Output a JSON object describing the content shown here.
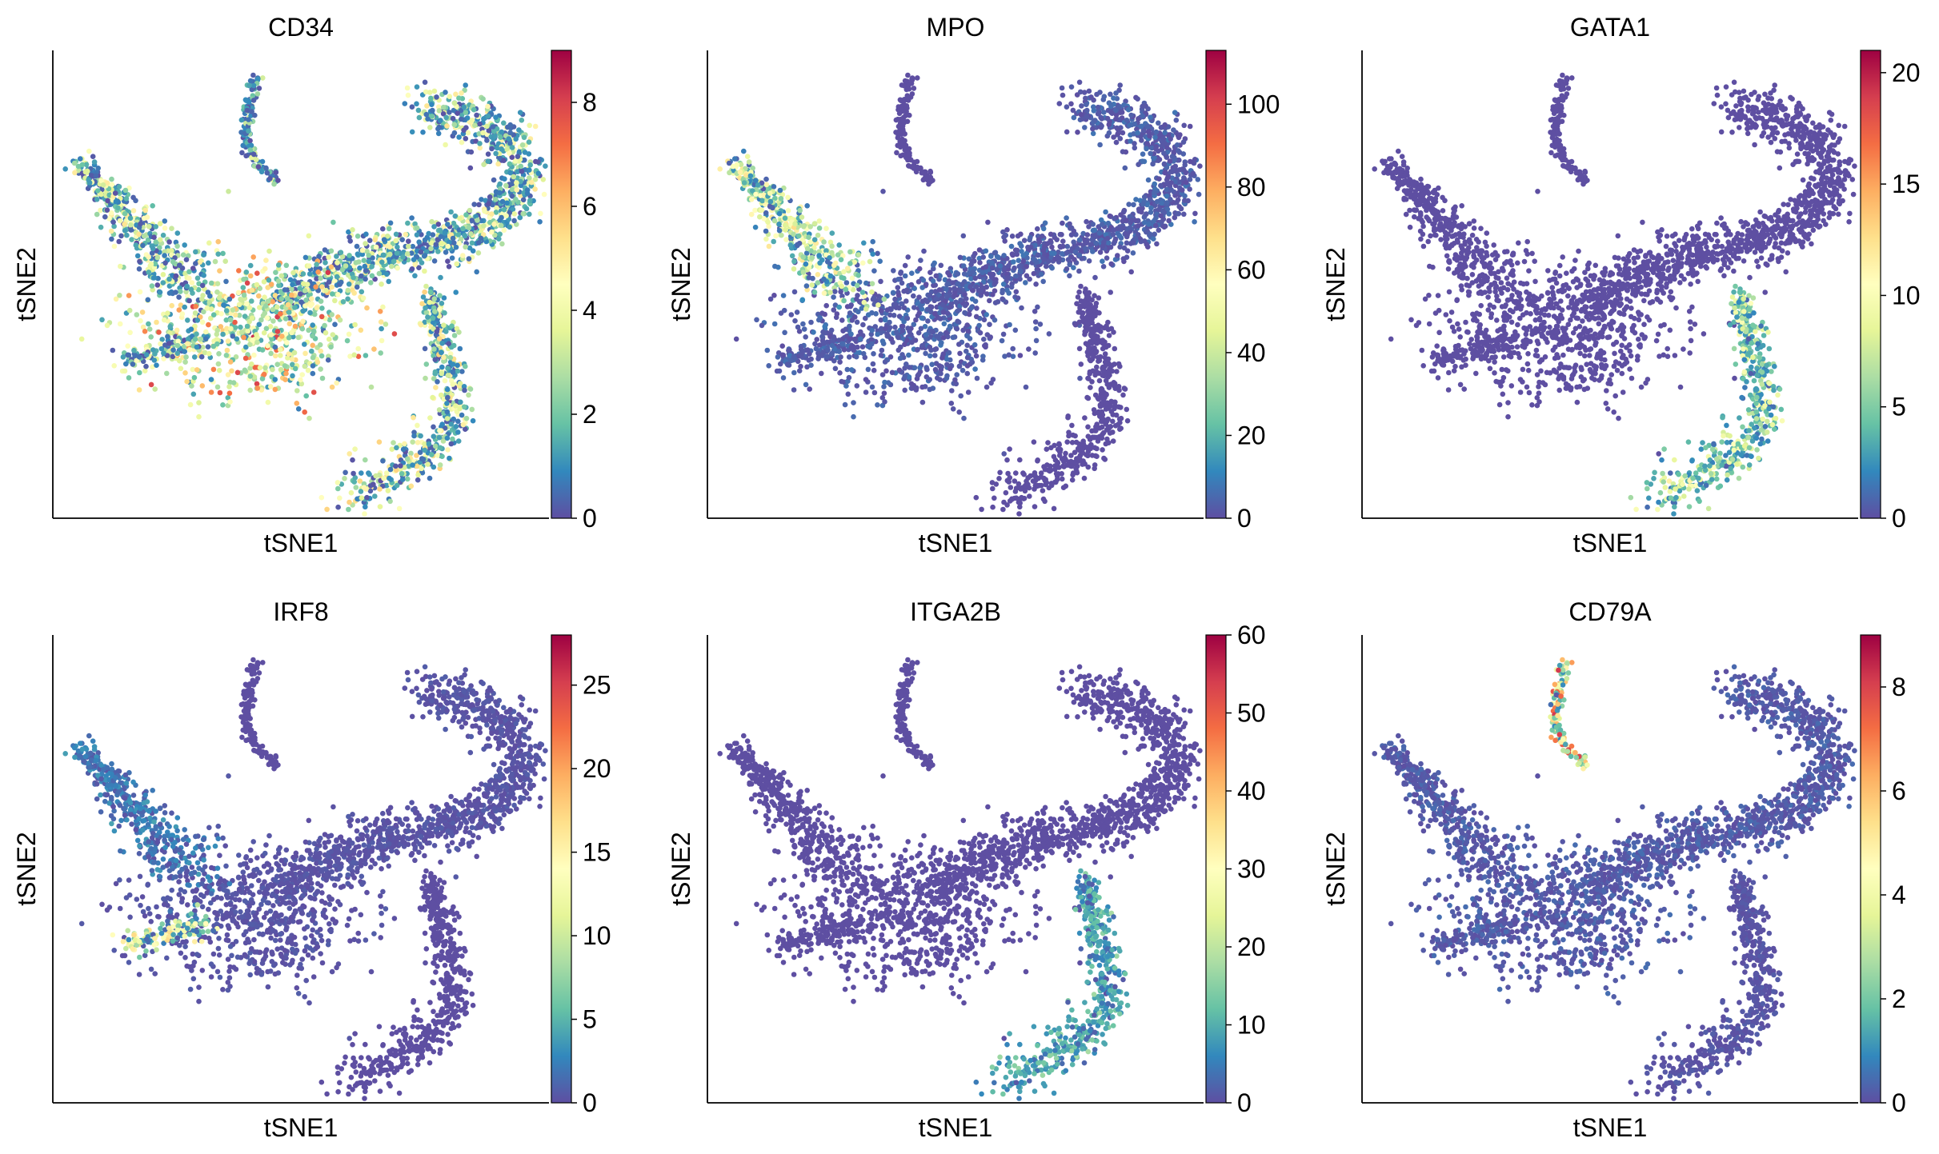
{
  "chart_data": [
    {
      "type": "scatter",
      "title": "CD34",
      "xlabel": "tSNE1",
      "ylabel": "tSNE2",
      "colorbar": {
        "min": 0,
        "max": 9,
        "ticks": [
          0,
          2,
          4,
          6,
          8
        ]
      },
      "colormap": "Spectral_r",
      "expression": {
        "cluster_main": 0.42,
        "cluster_isolated": 0.3,
        "cluster_right": 0.45,
        "hotspot": "center-bottom"
      }
    },
    {
      "type": "scatter",
      "title": "MPO",
      "xlabel": "tSNE1",
      "ylabel": "tSNE2",
      "colorbar": {
        "min": 0,
        "max": 113,
        "ticks": [
          0,
          20,
          40,
          60,
          80,
          100
        ]
      },
      "colormap": "Spectral_r",
      "expression": {
        "cluster_main": 0.05,
        "cluster_isolated": 0.0,
        "cluster_right": 0.0,
        "hotspot": "left-arm"
      }
    },
    {
      "type": "scatter",
      "title": "GATA1",
      "xlabel": "tSNE1",
      "ylabel": "tSNE2",
      "colorbar": {
        "min": 0,
        "max": 21,
        "ticks": [
          0,
          5,
          10,
          15,
          20
        ]
      },
      "colormap": "Spectral_r",
      "expression": {
        "cluster_main": 0.0,
        "cluster_isolated": 0.0,
        "cluster_right": 0.3,
        "hotspot": "right-cluster"
      }
    },
    {
      "type": "scatter",
      "title": "IRF8",
      "xlabel": "tSNE1",
      "ylabel": "tSNE2",
      "colorbar": {
        "min": 0,
        "max": 28,
        "ticks": [
          0,
          5,
          10,
          15,
          20,
          25
        ]
      },
      "colormap": "Spectral_r",
      "expression": {
        "cluster_main": 0.02,
        "cluster_isolated": 0.0,
        "cluster_right": 0.0,
        "hotspot": "left-blob"
      }
    },
    {
      "type": "scatter",
      "title": "ITGA2B",
      "xlabel": "tSNE1",
      "ylabel": "tSNE2",
      "colorbar": {
        "min": 0,
        "max": 60,
        "ticks": [
          0,
          10,
          20,
          30,
          40,
          50,
          60
        ]
      },
      "colormap": "Spectral_r",
      "expression": {
        "cluster_main": 0.0,
        "cluster_isolated": 0.0,
        "cluster_right": 0.12,
        "hotspot": "right-cluster"
      }
    },
    {
      "type": "scatter",
      "title": "CD79A",
      "xlabel": "tSNE1",
      "ylabel": "tSNE2",
      "colorbar": {
        "min": 0,
        "max": 9,
        "ticks": [
          0,
          2,
          4,
          6,
          8
        ]
      },
      "colormap": "Spectral_r",
      "expression": {
        "cluster_main": 0.04,
        "cluster_isolated": 0.55,
        "cluster_right": 0.02,
        "hotspot": "isolated-arc"
      }
    }
  ]
}
